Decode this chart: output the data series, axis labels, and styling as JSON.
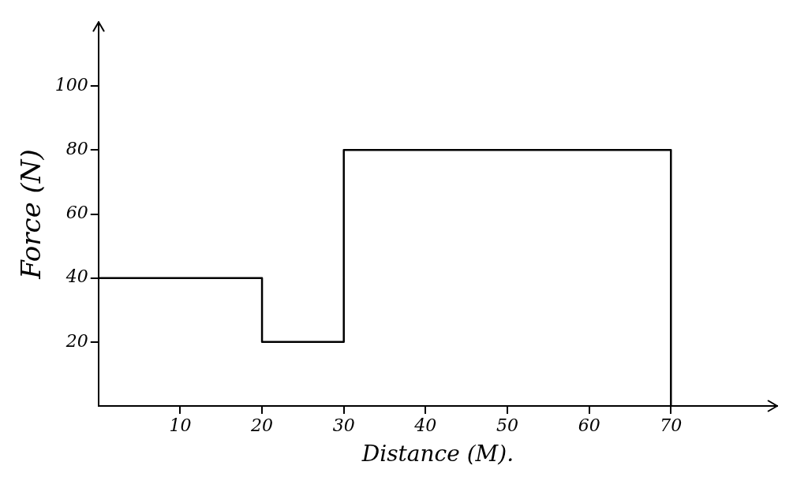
{
  "chart_data": {
    "type": "step",
    "xlabel": "Distance (M).",
    "ylabel": "Force (N)",
    "x": [
      0,
      20,
      30,
      70
    ],
    "series": [
      {
        "color": "#000000",
        "values": [
          40,
          20,
          80,
          0
        ]
      }
    ],
    "xlim": [
      0,
      83
    ],
    "xticks": [
      10,
      20,
      30,
      40,
      50,
      60,
      70
    ],
    "ylim": [
      0,
      120
    ],
    "yticks": [
      20,
      40,
      60,
      80,
      100
    ],
    "grid": false,
    "legend": false,
    "marker": "none",
    "line_style": "solid"
  }
}
